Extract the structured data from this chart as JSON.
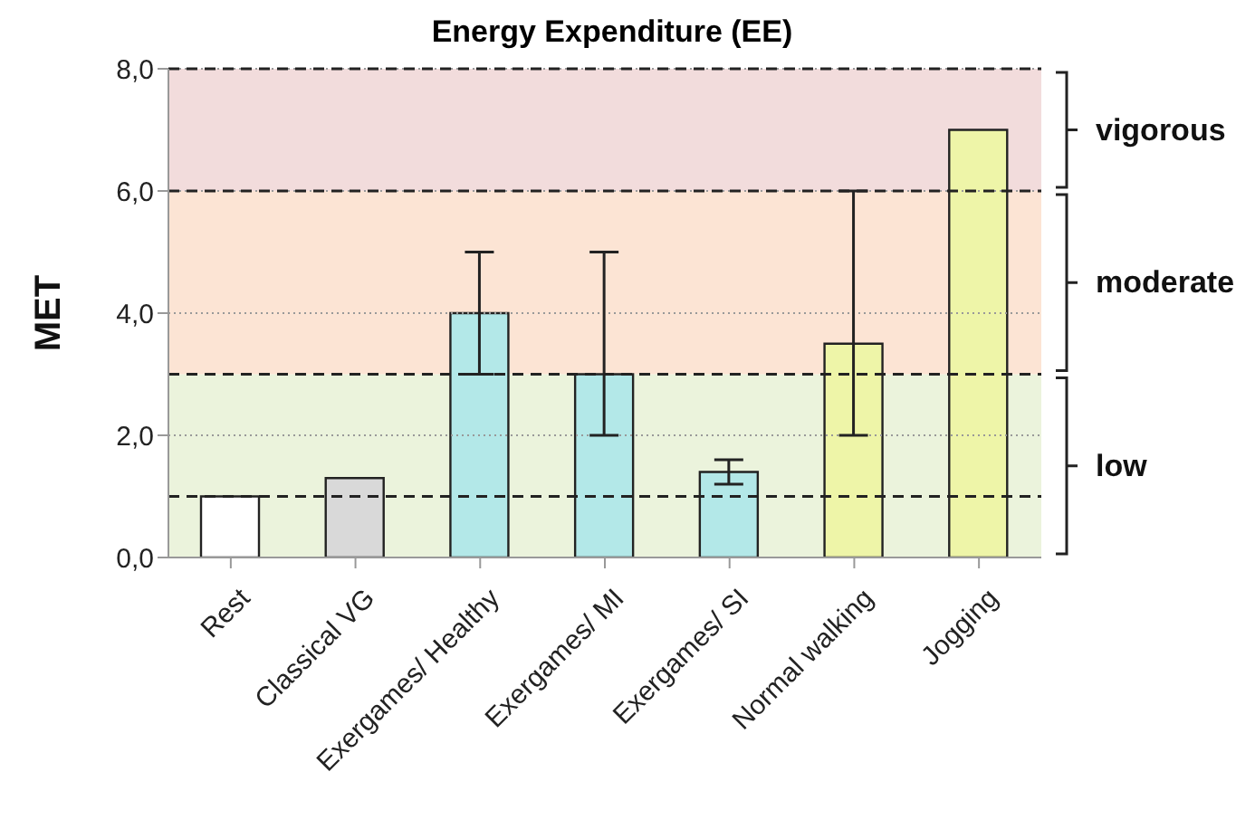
{
  "chart_data": {
    "type": "bar",
    "title": "Energy Expenditure  (EE)",
    "ylabel": "MET",
    "categories": [
      "Rest",
      "Classical VG",
      "Exergames/ Healthy",
      "Exergames/ MI",
      "Exergames/ SI",
      "Normal walking",
      "Jogging"
    ],
    "values": [
      1.0,
      1.3,
      4.0,
      3.0,
      1.4,
      3.5,
      7.0
    ],
    "colors": [
      "#ffffff",
      "#d9d9d9",
      "#b3e8e8",
      "#b3e8e8",
      "#b3e8e8",
      "#eef5a8",
      "#eef5a8"
    ],
    "errors": [
      null,
      null,
      [
        3,
        5
      ],
      [
        2,
        5
      ],
      [
        1.2,
        1.6
      ],
      [
        2,
        6
      ],
      null
    ],
    "ylim": [
      0,
      8
    ],
    "yticks": [
      {
        "value": 0,
        "label": "0,0"
      },
      {
        "value": 2,
        "label": "2,0"
      },
      {
        "value": 4,
        "label": "4,0"
      },
      {
        "value": 6,
        "label": "6,0"
      },
      {
        "value": 8,
        "label": "8,0"
      }
    ],
    "grid": "y",
    "bands": [
      {
        "axis": "y",
        "from": 0,
        "to": 3,
        "label": "low",
        "color": "#ebf3dc"
      },
      {
        "axis": "y",
        "from": 3,
        "to": 6,
        "label": "moderate",
        "color": "#fce4d4"
      },
      {
        "axis": "y",
        "from": 6,
        "to": 8,
        "label": "vigorous",
        "color": "#f2dcdc"
      }
    ],
    "ref_lines": [
      {
        "axis": "y",
        "value": 1,
        "line_style": "dashed"
      },
      {
        "axis": "y",
        "value": 3,
        "line_style": "dashed"
      },
      {
        "axis": "y",
        "value": 6,
        "line_style": "dashed"
      },
      {
        "axis": "y",
        "value": 8,
        "line_style": "dashed"
      }
    ]
  }
}
